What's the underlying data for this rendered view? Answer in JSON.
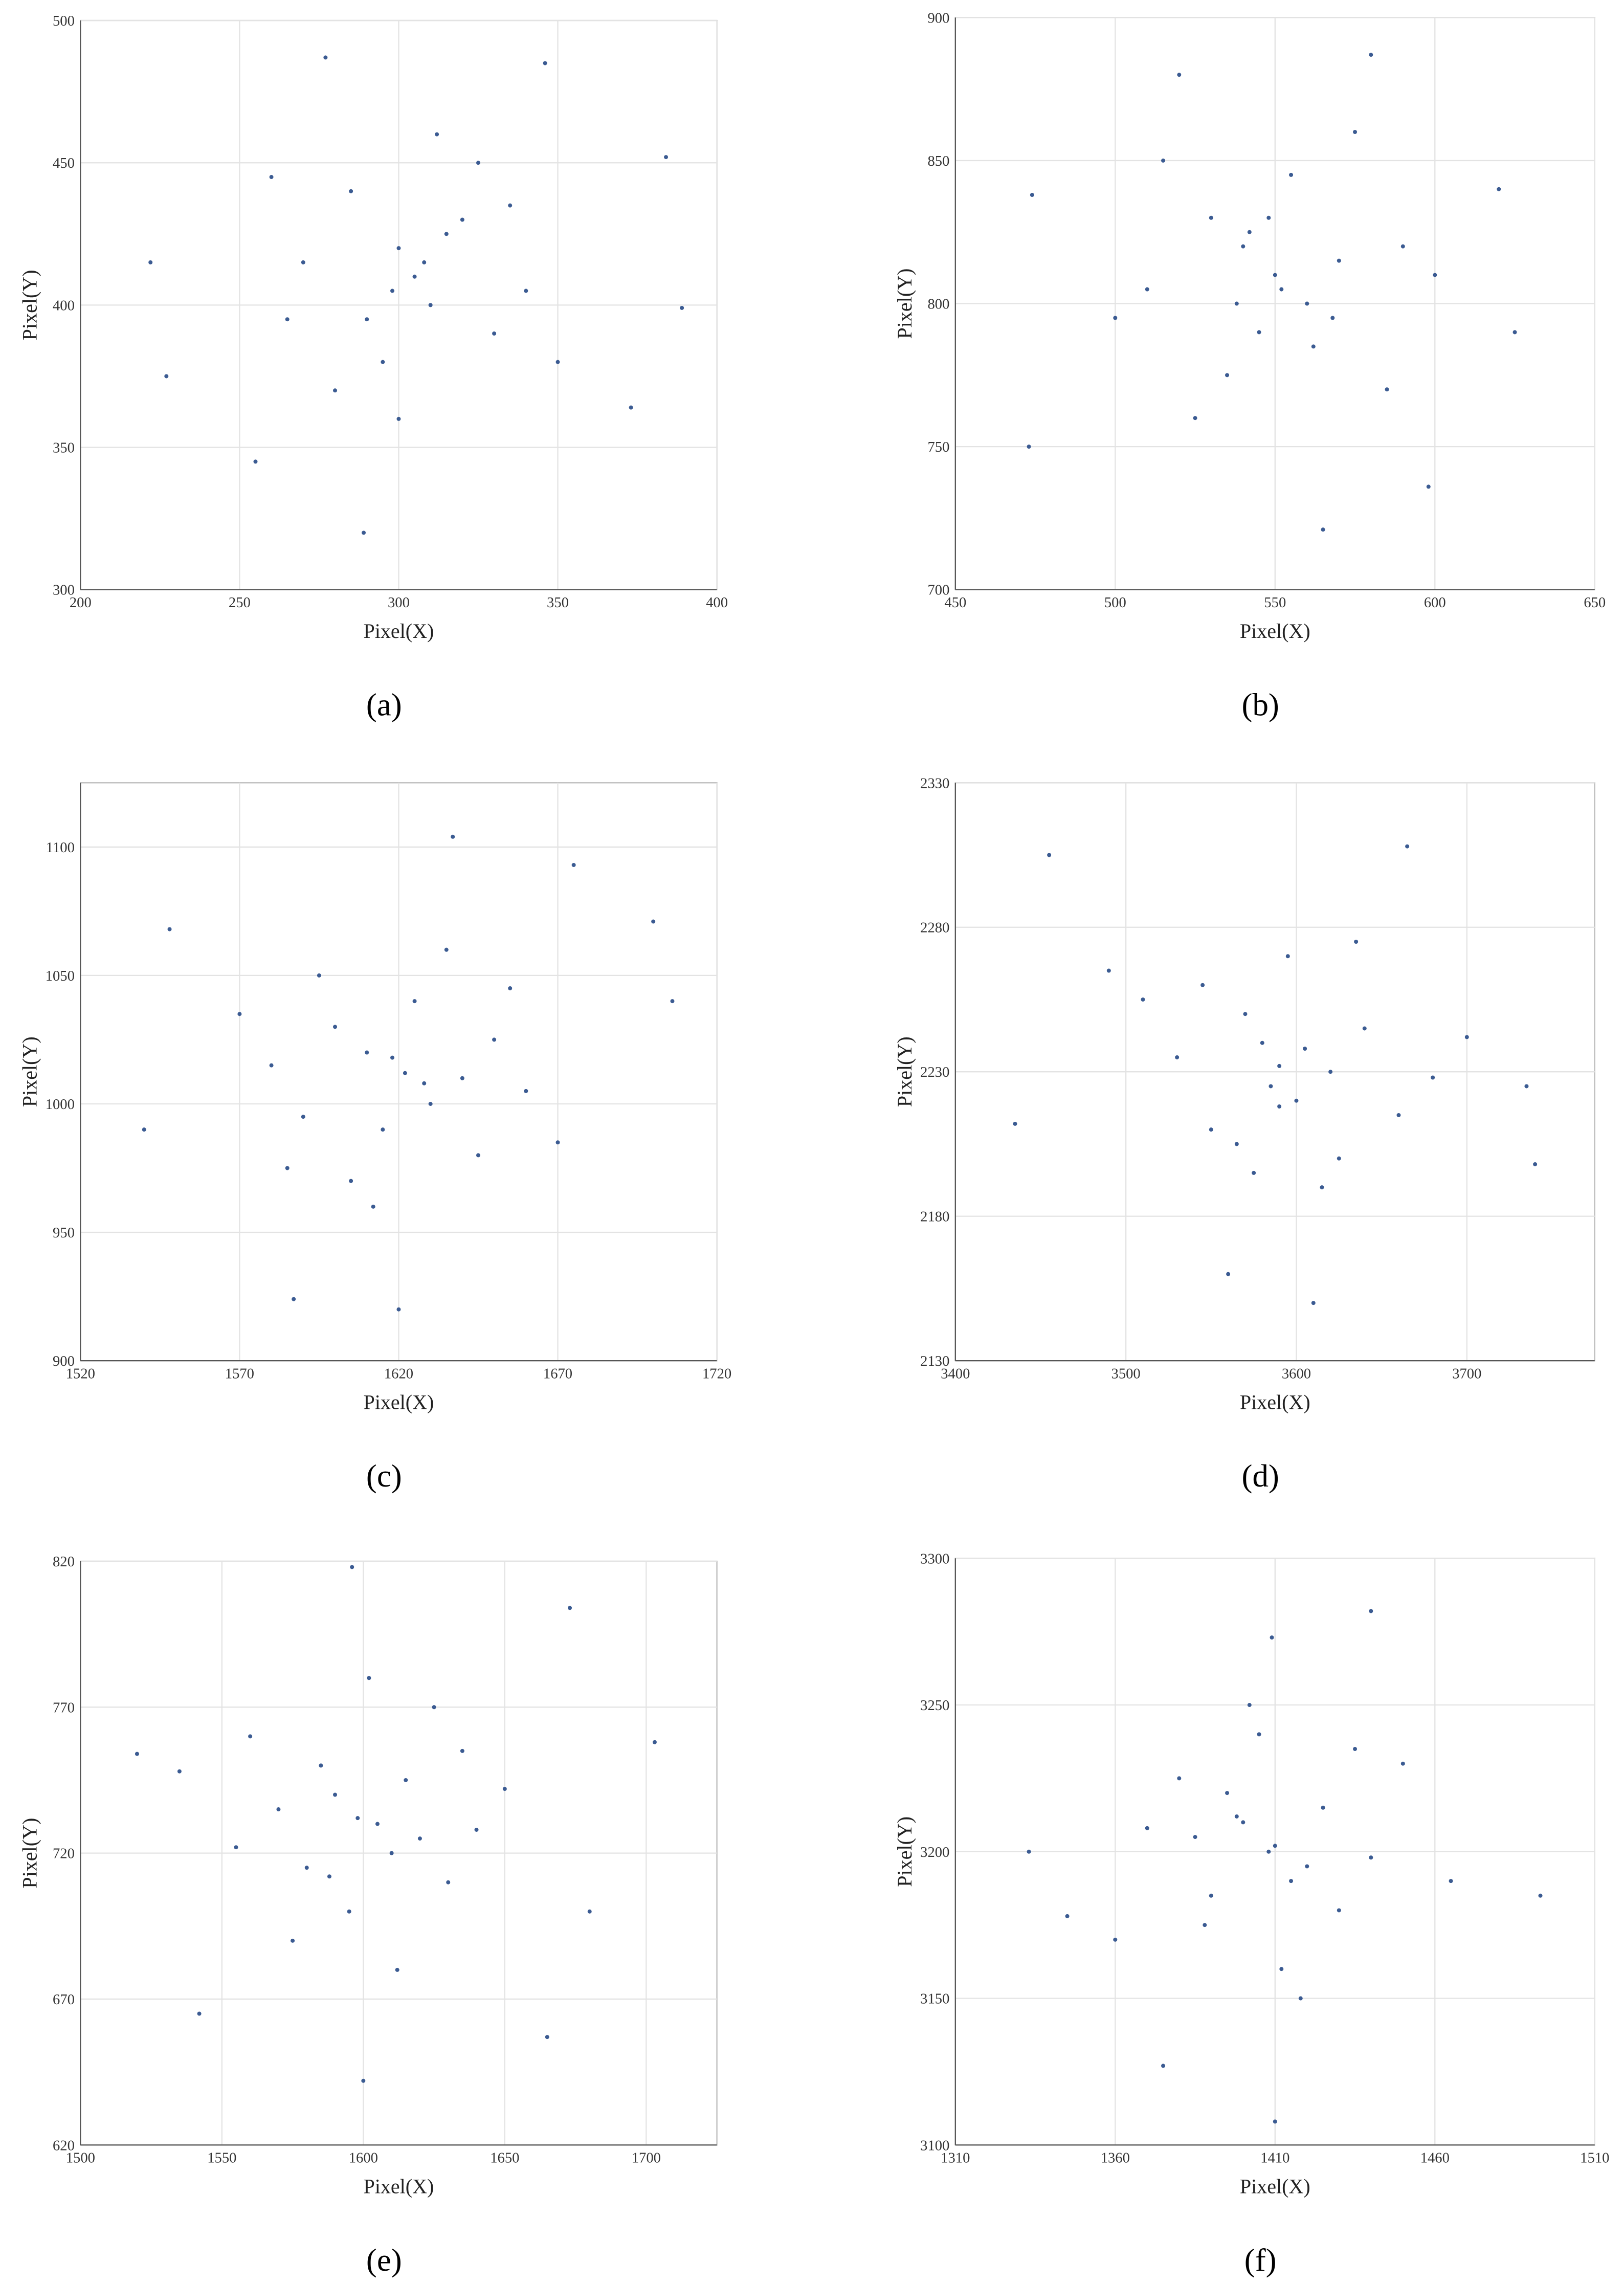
{
  "chart_data": [
    {
      "type": "scatter",
      "caption": "(a)",
      "xlabel": "Pixel(X)",
      "ylabel": "Pixel(Y)",
      "color": "#3b5b92",
      "grid": true,
      "xlim": [
        200,
        400
      ],
      "ylim": [
        300,
        500
      ],
      "xticks": [
        200,
        250,
        300,
        350,
        400
      ],
      "yticks": [
        300,
        350,
        400,
        450,
        500
      ],
      "x": [
        277,
        289,
        389,
        384,
        222,
        227,
        346,
        373,
        255,
        305,
        300,
        310,
        290,
        320,
        285,
        330,
        295,
        315,
        270,
        340,
        260,
        350,
        300,
        312,
        280,
        325,
        308,
        298,
        265,
        335
      ],
      "y": [
        487,
        320,
        399,
        452,
        415,
        375,
        485,
        364,
        345,
        410,
        420,
        400,
        395,
        430,
        440,
        390,
        380,
        425,
        415,
        405,
        445,
        380,
        360,
        460,
        370,
        450,
        415,
        405,
        395,
        435
      ]
    },
    {
      "type": "scatter",
      "caption": "(b)",
      "xlabel": "Pixel(X)",
      "ylabel": "Pixel(Y)",
      "color": "#3b5b92",
      "grid": true,
      "xlim": [
        450,
        650
      ],
      "ylim": [
        700,
        900
      ],
      "xticks": [
        450,
        500,
        550,
        600,
        650
      ],
      "yticks": [
        700,
        750,
        800,
        850,
        900
      ],
      "x": [
        473,
        565,
        625,
        580,
        474,
        598,
        620,
        520,
        550,
        540,
        560,
        530,
        545,
        570,
        535,
        555,
        510,
        590,
        500,
        600,
        525,
        575,
        548,
        538,
        562,
        515,
        585,
        552,
        542,
        568
      ],
      "y": [
        750,
        721,
        790,
        887,
        838,
        736,
        840,
        880,
        810,
        820,
        800,
        830,
        790,
        815,
        775,
        845,
        805,
        820,
        795,
        810,
        760,
        860,
        830,
        800,
        785,
        850,
        770,
        805,
        825,
        795
      ]
    },
    {
      "type": "scatter",
      "caption": "(c)",
      "xlabel": "Pixel(X)",
      "ylabel": "Pixel(Y)",
      "color": "#3b5b92",
      "grid": true,
      "xlim": [
        1520,
        1720
      ],
      "ylim": [
        900,
        1125
      ],
      "xticks": [
        1520,
        1570,
        1620,
        1670,
        1720
      ],
      "yticks": [
        900,
        950,
        1000,
        1050,
        1100
      ],
      "x": [
        1637,
        1587,
        1540,
        1706,
        1620,
        1700,
        1548,
        1675,
        1622,
        1610,
        1630,
        1600,
        1640,
        1615,
        1625,
        1650,
        1590,
        1660,
        1580,
        1605,
        1635,
        1645,
        1595,
        1628,
        1612,
        1570,
        1670,
        1618,
        1655,
        1585
      ],
      "y": [
        1104,
        924,
        990,
        1040,
        920,
        1071,
        1068,
        1093,
        1012,
        1020,
        1000,
        1030,
        1010,
        990,
        1040,
        1025,
        995,
        1005,
        1015,
        970,
        1060,
        980,
        1050,
        1008,
        960,
        1035,
        985,
        1018,
        1045,
        975
      ]
    },
    {
      "type": "scatter",
      "caption": "(d)",
      "xlabel": "Pixel(X)",
      "ylabel": "Pixel(Y)",
      "color": "#3b5b92",
      "grid": true,
      "xlim": [
        3400,
        3775
      ],
      "ylim": [
        2130,
        2330
      ],
      "xticks": [
        3400,
        3500,
        3600,
        3700
      ],
      "yticks": [
        2130,
        2180,
        2230,
        2280,
        2330
      ],
      "x": [
        3455,
        3435,
        3610,
        3665,
        3740,
        3735,
        3560,
        3590,
        3580,
        3600,
        3570,
        3620,
        3550,
        3640,
        3530,
        3660,
        3510,
        3680,
        3595,
        3575,
        3605,
        3625,
        3545,
        3585,
        3615,
        3490,
        3700,
        3565,
        3635,
        3590
      ],
      "y": [
        2305,
        2212,
        2150,
        2308,
        2198,
        2225,
        2160,
        2232,
        2240,
        2220,
        2250,
        2230,
        2210,
        2245,
        2235,
        2215,
        2255,
        2228,
        2270,
        2195,
        2238,
        2200,
        2260,
        2225,
        2190,
        2265,
        2242,
        2205,
        2275,
        2218
      ]
    },
    {
      "type": "scatter",
      "caption": "(e)",
      "xlabel": "Pixel(X)",
      "ylabel": "Pixel(Y)",
      "color": "#3b5b92",
      "grid": true,
      "xlim": [
        1500,
        1725
      ],
      "ylim": [
        620,
        820
      ],
      "xticks": [
        1500,
        1550,
        1600,
        1650,
        1700
      ],
      "yticks": [
        620,
        670,
        720,
        770,
        820
      ],
      "x": [
        1596,
        1600,
        1703,
        1520,
        1542,
        1673,
        1665,
        1605,
        1590,
        1610,
        1585,
        1620,
        1580,
        1615,
        1570,
        1630,
        1560,
        1640,
        1595,
        1625,
        1575,
        1650,
        1555,
        1602,
        1612,
        1535,
        1680,
        1588,
        1635,
        1598
      ],
      "y": [
        818,
        642,
        758,
        754,
        665,
        804,
        657,
        730,
        740,
        720,
        750,
        725,
        715,
        745,
        735,
        710,
        760,
        728,
        700,
        770,
        690,
        742,
        722,
        780,
        680,
        748,
        700,
        712,
        755,
        732
      ]
    },
    {
      "type": "scatter",
      "caption": "(f)",
      "xlabel": "Pixel(X)",
      "ylabel": "Pixel(Y)",
      "color": "#3b5b92",
      "grid": true,
      "xlim": [
        1310,
        1510
      ],
      "ylim": [
        3100,
        3300
      ],
      "xticks": [
        1310,
        1360,
        1410,
        1460,
        1510
      ],
      "yticks": [
        3100,
        3150,
        3200,
        3250,
        3300
      ],
      "x": [
        1410,
        1409,
        1333,
        1493,
        1440,
        1345,
        1375,
        1408,
        1400,
        1415,
        1395,
        1420,
        1390,
        1425,
        1385,
        1430,
        1380,
        1440,
        1405,
        1412,
        1370,
        1450,
        1360,
        1402,
        1418,
        1398,
        1465,
        1388,
        1435,
        1410
      ],
      "y": [
        3108,
        3273,
        3200,
        3185,
        3282,
        3178,
        3127,
        3200,
        3210,
        3190,
        3220,
        3195,
        3185,
        3215,
        3205,
        3180,
        3225,
        3198,
        3240,
        3160,
        3208,
        3230,
        3170,
        3250,
        3150,
        3212,
        3190,
        3175,
        3235,
        3202
      ]
    }
  ]
}
